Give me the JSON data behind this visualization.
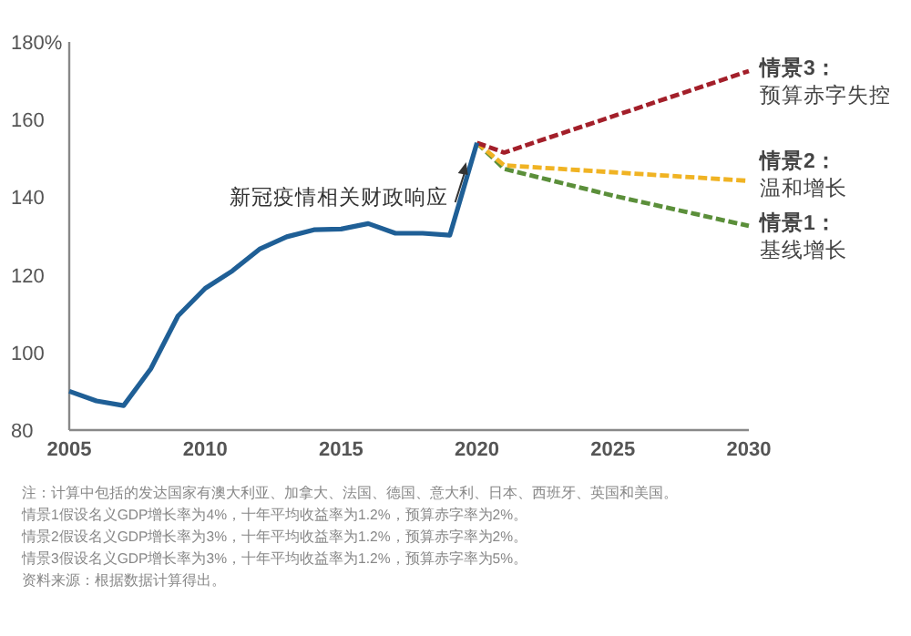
{
  "chart_data": {
    "type": "line",
    "xlim": [
      2005,
      2030
    ],
    "ylim": [
      80,
      180
    ],
    "xticks": [
      2005,
      2010,
      2015,
      2020,
      2025,
      2030
    ],
    "yticks": [
      80,
      100,
      120,
      140,
      160,
      {
        "value": 180,
        "label": "180%"
      }
    ],
    "grid": false,
    "legend": false,
    "marker": "none",
    "series": [
      {
        "color": "#1f5f96",
        "line_style": "solid",
        "x": [
          2005,
          2006,
          2007,
          2008,
          2009,
          2010,
          2011,
          2012,
          2013,
          2014,
          2015,
          2016,
          2017,
          2018,
          2019,
          2020
        ],
        "values": [
          90,
          87.5,
          86.3,
          95.8,
          109.4,
          116.5,
          121,
          126.6,
          129.8,
          131.6,
          131.8,
          133.2,
          130.7,
          130.7,
          130.2,
          154
        ]
      },
      {
        "name": "**情景3：**预算赤字失控",
        "color": "#a31f2a",
        "line_style": "dashed",
        "x": [
          2020,
          2021,
          2030
        ],
        "values": [
          154,
          151.5,
          172.5
        ]
      },
      {
        "name": "**情景2：**温和增长",
        "color": "#f0b323",
        "line_style": "dashed",
        "x": [
          2020,
          2021,
          2030
        ],
        "values": [
          154,
          148.2,
          144.2
        ]
      },
      {
        "name": "**情景1：**基线增长",
        "color": "#5b8f3a",
        "line_style": "dashed",
        "x": [
          2020,
          2021,
          2025,
          2030
        ],
        "values": [
          154,
          147.3,
          140.4,
          132.6
        ]
      }
    ],
    "annotations": [
      {
        "text": "新冠疫情相关财政响应",
        "x": 2019.6,
        "y": 149
      },
      "注：计算中包括的发达国家有澳大利亚、加拿大、法国、德国、意大利、日本、西班牙、英国和美国。",
      "情景1假设名义GDP增长率为4%，十年平均收益率为1.2%，预算赤字率为2%。",
      "情景2假设名义GDP增长率为3%，十年平均收益率为1.2%，预算赤字率为2%。",
      "情景3假设名义GDP增长率为3%，十年平均收益率为1.2%，预算赤字率为5%。",
      "资料来源：根据数据计算得出。"
    ]
  }
}
